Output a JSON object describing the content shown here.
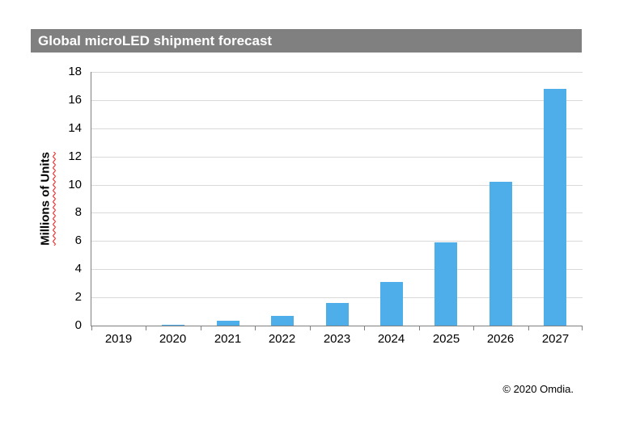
{
  "title": "Global microLED shipment forecast",
  "footer": "© 2020 Omdia.",
  "colors": {
    "bar": "#4DAEEA",
    "title_bg": "#808080",
    "gridline": "#D9D9D9",
    "axis": "#808080",
    "ylabel_underline": "#FF0000"
  },
  "chart_data": {
    "type": "bar",
    "title": "Global microLED shipment forecast",
    "categories": [
      "2019",
      "2020",
      "2021",
      "2022",
      "2023",
      "2024",
      "2025",
      "2026",
      "2027"
    ],
    "values": [
      0.02,
      0.06,
      0.35,
      0.7,
      1.6,
      3.1,
      5.9,
      10.2,
      16.8
    ],
    "xlabel": "",
    "ylabel": "Millions of Units",
    "ylim": [
      0,
      18
    ],
    "ytick_step": 2,
    "grid": true,
    "legend": false,
    "annotation": "© 2020 Omdia."
  }
}
